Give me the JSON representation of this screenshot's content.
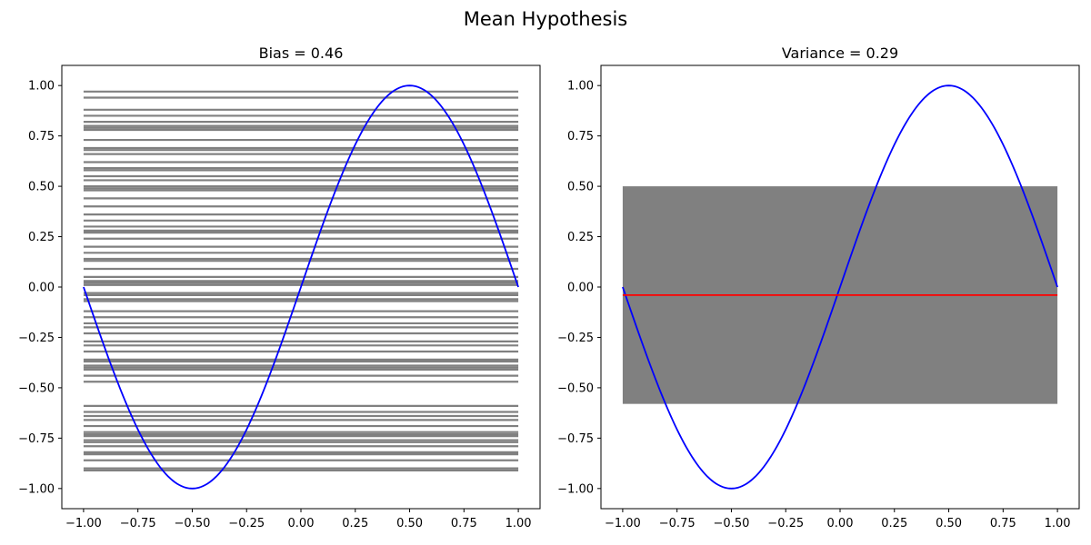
{
  "figure": {
    "suptitle": "Mean Hypothesis"
  },
  "chart_data": [
    {
      "type": "line",
      "title": "Bias = 0.46",
      "xlim": [
        -1.1,
        1.1
      ],
      "ylim": [
        -1.1,
        1.1
      ],
      "xticks": [
        -1.0,
        -0.75,
        -0.5,
        -0.25,
        0.0,
        0.25,
        0.5,
        0.75,
        1.0
      ],
      "xtick_labels": [
        "−1.00",
        "−0.75",
        "−0.50",
        "−0.25",
        "0.00",
        "0.25",
        "0.50",
        "0.75",
        "1.00"
      ],
      "yticks": [
        -1.0,
        -0.75,
        -0.5,
        -0.25,
        0.0,
        0.25,
        0.5,
        0.75,
        1.0
      ],
      "ytick_labels": [
        "−1.00",
        "−0.75",
        "−0.50",
        "−0.25",
        "0.00",
        "0.25",
        "0.50",
        "0.75",
        "1.00"
      ],
      "grid": false,
      "target_function": {
        "expression": "sin(pi * x)",
        "color": "#0000ff",
        "x_range": [
          -1,
          1
        ]
      },
      "hypotheses": {
        "description": "constant hypotheses y = c over x in [-1, 1]",
        "color": "#808080",
        "x_range": [
          -1,
          1
        ],
        "values": [
          0.97,
          0.94,
          0.88,
          0.85,
          0.82,
          0.8,
          0.79,
          0.78,
          0.73,
          0.69,
          0.68,
          0.66,
          0.62,
          0.59,
          0.58,
          0.55,
          0.53,
          0.5,
          0.49,
          0.48,
          0.44,
          0.4,
          0.36,
          0.33,
          0.3,
          0.28,
          0.27,
          0.24,
          0.2,
          0.17,
          0.14,
          0.13,
          0.09,
          0.05,
          0.03,
          0.02,
          0.01,
          -0.03,
          -0.04,
          -0.06,
          -0.07,
          -0.12,
          -0.15,
          -0.18,
          -0.2,
          -0.23,
          -0.27,
          -0.29,
          -0.32,
          -0.36,
          -0.37,
          -0.39,
          -0.4,
          -0.41,
          -0.44,
          -0.47,
          -0.59,
          -0.62,
          -0.64,
          -0.66,
          -0.69,
          -0.72,
          -0.73,
          -0.74,
          -0.76,
          -0.77,
          -0.79,
          -0.82,
          -0.83,
          -0.86,
          -0.9,
          -0.91
        ]
      }
    },
    {
      "type": "line",
      "title": "Variance = 0.29",
      "xlim": [
        -1.1,
        1.1
      ],
      "ylim": [
        -1.1,
        1.1
      ],
      "xticks": [
        -1.0,
        -0.75,
        -0.5,
        -0.25,
        0.0,
        0.25,
        0.5,
        0.75,
        1.0
      ],
      "xtick_labels": [
        "−1.00",
        "−0.75",
        "−0.50",
        "−0.25",
        "0.00",
        "0.25",
        "0.50",
        "0.75",
        "1.00"
      ],
      "yticks": [
        -1.0,
        -0.75,
        -0.5,
        -0.25,
        0.0,
        0.25,
        0.5,
        0.75,
        1.0
      ],
      "ytick_labels": [
        "−1.00",
        "−0.75",
        "−0.50",
        "−0.25",
        "0.00",
        "0.25",
        "0.50",
        "0.75",
        "1.00"
      ],
      "grid": false,
      "target_function": {
        "expression": "sin(pi * x)",
        "color": "#0000ff",
        "x_range": [
          -1,
          1
        ]
      },
      "variance_band": {
        "color": "#808080",
        "x_range": [
          -1,
          1
        ],
        "y_lower": -0.58,
        "y_upper": 0.5
      },
      "mean_hypothesis": {
        "color": "#ff0000",
        "x_range": [
          -1,
          1
        ],
        "y": -0.04
      }
    }
  ]
}
